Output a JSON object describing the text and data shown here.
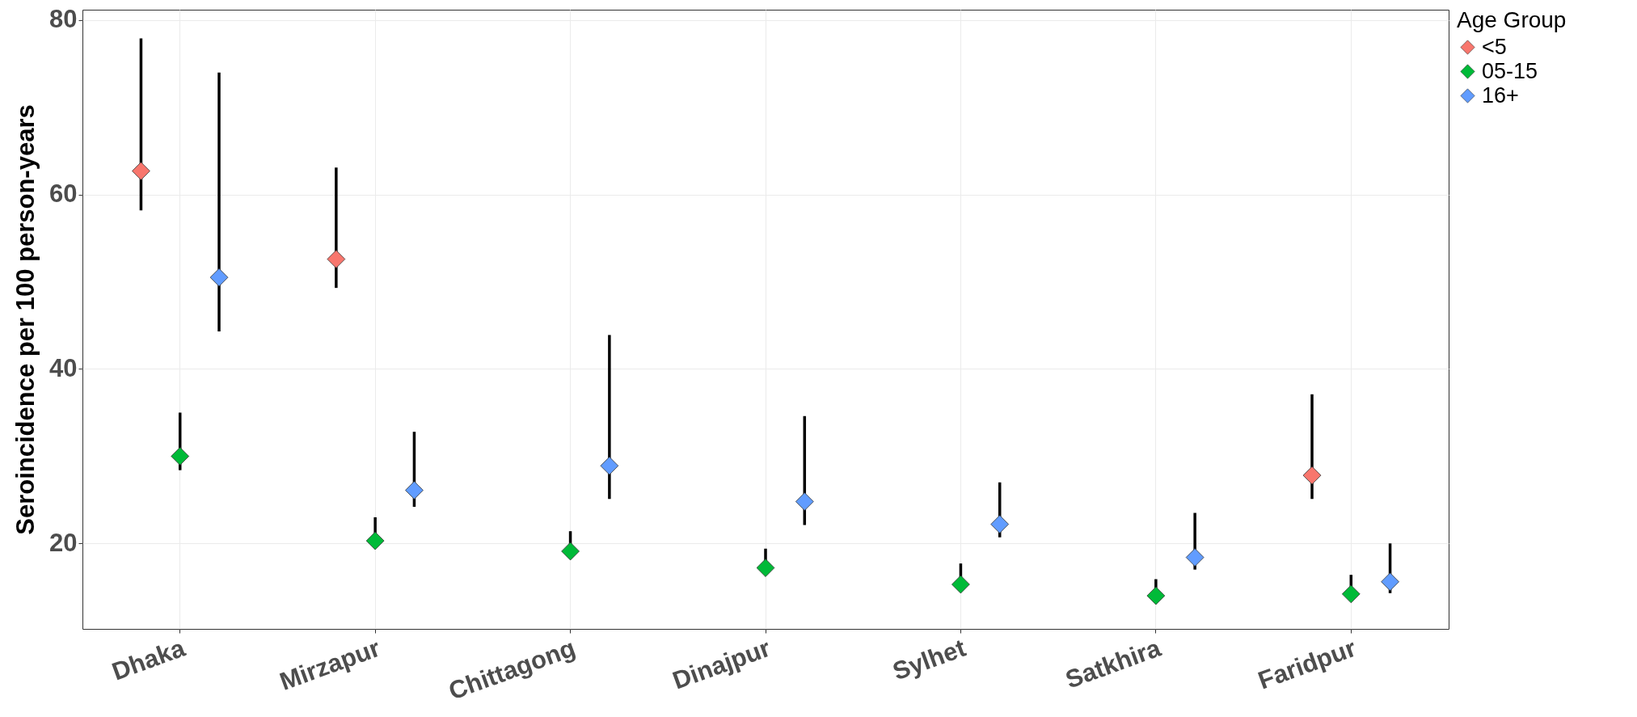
{
  "chart_data": {
    "type": "scatter",
    "ylabel": "Seroincidence per 100 person-years",
    "legend_title": "Age Group",
    "legend": "right",
    "grid": true,
    "marker": "diamond",
    "categories": [
      "Dhaka",
      "Mirzapur",
      "Chittagong",
      "Dinajpur",
      "Sylhet",
      "Satkhira",
      "Faridpur"
    ],
    "ylim": [
      10.2,
      81.2
    ],
    "yticks": [
      20,
      40,
      60,
      80
    ],
    "series": [
      {
        "name": "<5",
        "color": "#f8766d",
        "values": [
          62.7,
          52.6,
          null,
          null,
          null,
          null,
          27.8
        ],
        "errors": [
          [
            58.2,
            77.9
          ],
          [
            49.3,
            63.1
          ],
          null,
          null,
          null,
          null,
          [
            25.1,
            37.1
          ]
        ]
      },
      {
        "name": "05-15",
        "color": "#00ba38",
        "values": [
          30.0,
          20.3,
          19.1,
          17.2,
          15.3,
          14.0,
          14.2
        ],
        "errors": [
          [
            28.4,
            35.0
          ],
          [
            19.8,
            23.0
          ],
          [
            18.6,
            21.4
          ],
          [
            16.6,
            19.4
          ],
          [
            14.8,
            17.7
          ],
          [
            13.6,
            15.9
          ],
          [
            13.8,
            16.4
          ]
        ]
      },
      {
        "name": "16+",
        "color": "#619cff",
        "values": [
          50.5,
          26.1,
          28.9,
          24.8,
          22.2,
          18.4,
          15.6
        ],
        "errors": [
          [
            44.3,
            74.0
          ],
          [
            24.2,
            32.8
          ],
          [
            25.1,
            43.9
          ],
          [
            22.1,
            34.6
          ],
          [
            20.7,
            27.0
          ],
          [
            17.0,
            23.5
          ],
          [
            14.3,
            20.0
          ]
        ]
      }
    ]
  }
}
